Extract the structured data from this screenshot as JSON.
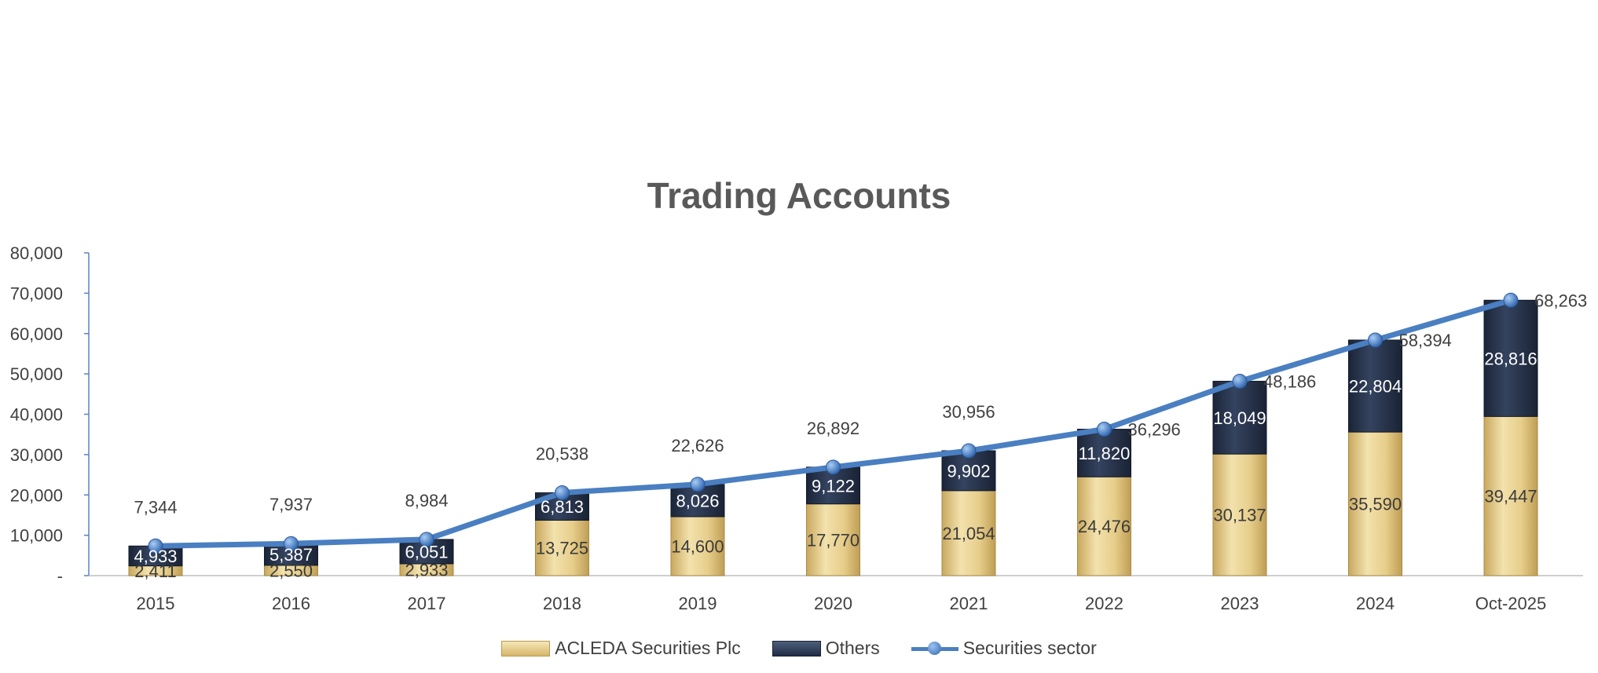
{
  "chart_data": {
    "type": "bar",
    "title": "Trading Accounts",
    "categories": [
      "2015",
      "2016",
      "2017",
      "2018",
      "2019",
      "2020",
      "2021",
      "2022",
      "2023",
      "2024",
      "Oct-2025"
    ],
    "series": [
      {
        "name": "ACLEDA Securities Plc",
        "kind": "stacked-bar",
        "values": [
          2411,
          2550,
          2933,
          13725,
          14600,
          17770,
          21054,
          24476,
          30137,
          35590,
          39447
        ],
        "labels": [
          "2,411",
          "2,550",
          "2,933",
          "13,725",
          "14,600",
          "17,770",
          "21,054",
          "24,476",
          "30,137",
          "35,590",
          "39,447"
        ]
      },
      {
        "name": "Others",
        "kind": "stacked-bar",
        "values": [
          4933,
          5387,
          6051,
          6813,
          8026,
          9122,
          9902,
          11820,
          18049,
          22804,
          28816
        ],
        "labels": [
          "4,933",
          "5,387",
          "6,051",
          "6,813",
          "8,026",
          "9,122",
          "9,902",
          "11,820",
          "18,049",
          "22,804",
          "28,816"
        ]
      },
      {
        "name": "Securities sector",
        "kind": "line",
        "values": [
          7344,
          7937,
          8984,
          20538,
          22626,
          26892,
          30956,
          36296,
          48186,
          58394,
          68263
        ],
        "labels": [
          "7,344",
          "7,937",
          "8,984",
          "20,538",
          "22,626",
          "26,892",
          "30,956",
          "36,296",
          "48,186",
          "58,394",
          "68,263"
        ]
      }
    ],
    "ylim": [
      0,
      80000
    ],
    "yticks": [
      0,
      10000,
      20000,
      30000,
      40000,
      50000,
      60000,
      70000,
      80000
    ],
    "ytick_labels": [
      "-",
      "10,000",
      "20,000",
      "30,000",
      "40,000",
      "50,000",
      "60,000",
      "70,000",
      "80,000"
    ],
    "grid": false,
    "legend": "bottom",
    "colors": {
      "acleda": "#d9bc73",
      "others": "#27344d",
      "line": "#4a7fc1"
    }
  }
}
